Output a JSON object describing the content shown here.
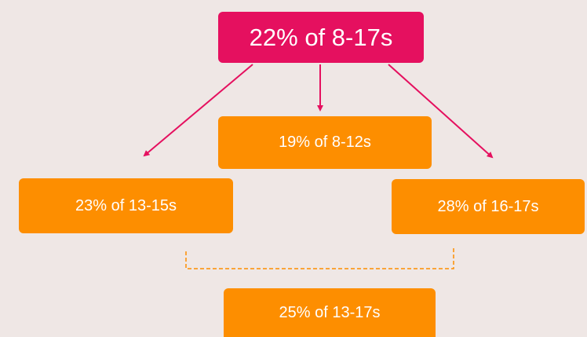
{
  "nodes": [
    {
      "label": "22% of 8-17s"
    },
    {
      "label": "19% of 8-12s"
    },
    {
      "label": "23% of 13-15s"
    },
    {
      "label": "28% of 16-17s"
    },
    {
      "label": "25% of 13-17s"
    }
  ]
}
